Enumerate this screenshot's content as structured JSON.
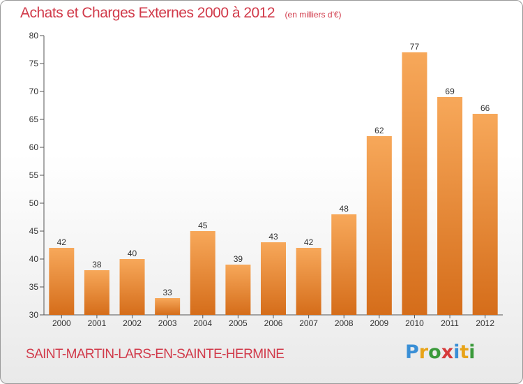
{
  "chart_data": {
    "type": "bar",
    "title": "Achats et Charges Externes 2000 à 2012",
    "subtitle": "(en milliers d'€)",
    "categories": [
      "2000",
      "2001",
      "2002",
      "2003",
      "2004",
      "2005",
      "2006",
      "2007",
      "2008",
      "2009",
      "2010",
      "2011",
      "2012"
    ],
    "values": [
      42,
      38,
      40,
      33,
      45,
      39,
      43,
      42,
      48,
      62,
      77,
      69,
      66
    ],
    "ylim": [
      30,
      80
    ],
    "yticks": [
      30,
      35,
      40,
      45,
      50,
      55,
      60,
      65,
      70,
      75,
      80
    ],
    "grid": false,
    "legend": "none",
    "colors": {
      "bar_top": "#f7a85a",
      "bar_bottom": "#d56d1a",
      "title": "#d13a4a",
      "axis": "#555555"
    }
  },
  "footer": {
    "commune": "SAINT-MARTIN-LARS-EN-SAINTE-HERMINE",
    "logo_letters": [
      "P",
      "r",
      "o",
      "x",
      "i",
      "t",
      "i"
    ],
    "logo_colors": [
      "#3a8fd6",
      "#e8a317",
      "#3a9a3a",
      "#d63a3a",
      "#3a8fd6",
      "#e8a317",
      "#3a9a3a"
    ]
  }
}
